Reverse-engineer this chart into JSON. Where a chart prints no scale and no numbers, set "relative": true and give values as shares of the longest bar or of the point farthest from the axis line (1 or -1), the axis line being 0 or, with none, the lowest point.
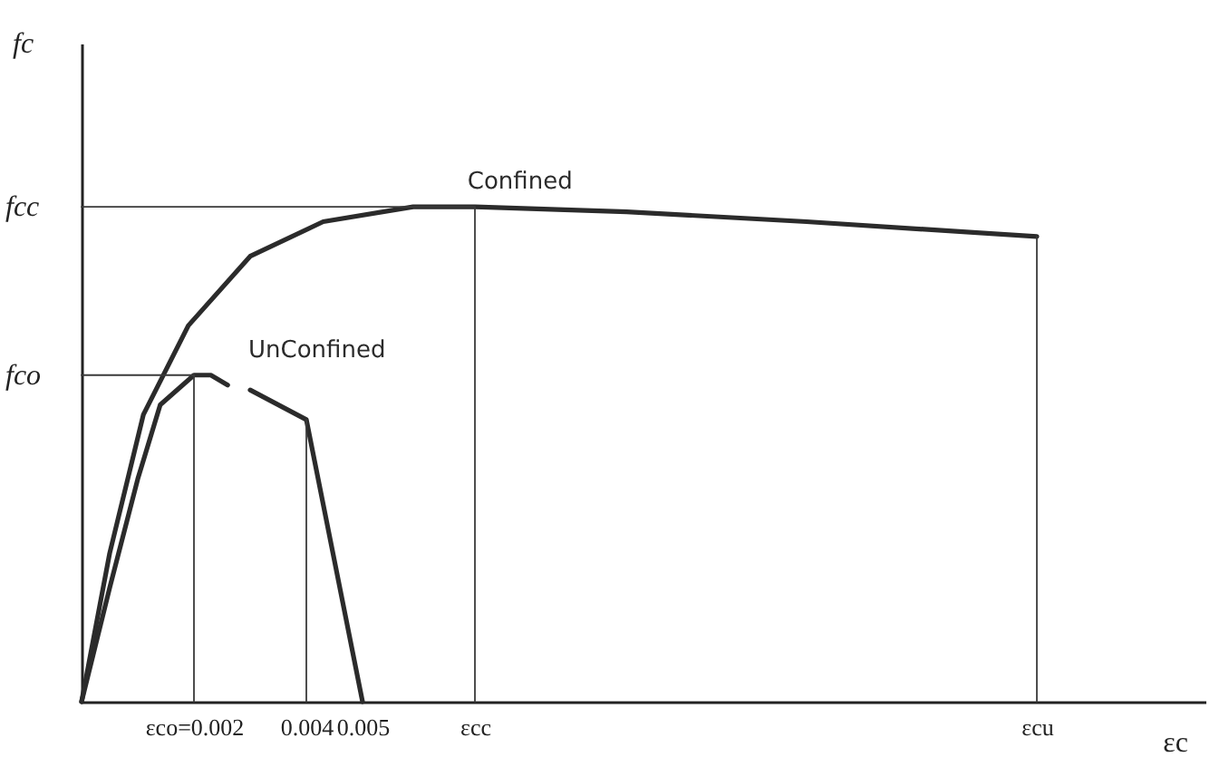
{
  "chart_data": {
    "type": "line",
    "relative": true,
    "xlabel": "εc",
    "xlim": [
      0,
      0.02
    ],
    "xticks": [
      {
        "value": 0.002,
        "label": "εco=0.002"
      },
      0.004,
      0.005,
      {
        "value": 0.007,
        "label": "εcc"
      },
      {
        "value": 0.017,
        "label": "εcu"
      }
    ],
    "series": [
      {
        "name": "Confined",
        "color": "#2b2b2b",
        "x": [
          0,
          0.0005,
          0.0011,
          0.0019,
          0.003,
          0.0043,
          0.0059,
          0.007,
          0.0097,
          0.0129,
          0.017
        ],
        "values": [
          0,
          0.3,
          0.58,
          0.76,
          0.9,
          0.97,
          1.0,
          1.0,
          0.99,
          0.97,
          0.94
        ]
      },
      {
        "name": "UnConfined",
        "color": "#2b2b2b",
        "x": [
          0,
          0.0005,
          0.001,
          0.0014,
          0.002,
          0.0023,
          0.0026,
          0.0028,
          0.003,
          0.004,
          0.005
        ],
        "values": [
          0,
          0.23,
          0.45,
          0.6,
          0.66,
          0.66,
          0.64,
          null,
          0.63,
          0.57,
          0
        ]
      },
      {
        "type": "line",
        "color": "#3a3a3a",
        "x": [
          0,
          0.007
        ],
        "values": [
          1.0,
          1.0
        ]
      },
      {
        "type": "line",
        "color": "#3a3a3a",
        "x": [
          0,
          0.002
        ],
        "values": [
          0.66,
          0.66
        ]
      },
      {
        "type": "line",
        "color": "#3a3a3a",
        "x": [
          0.002,
          0.002
        ],
        "values": [
          0,
          0.66
        ]
      },
      {
        "type": "line",
        "color": "#3a3a3a",
        "x": [
          0.004,
          0.004
        ],
        "values": [
          0,
          0.57
        ]
      },
      {
        "type": "line",
        "color": "#3a3a3a",
        "x": [
          0.007,
          0.007
        ],
        "values": [
          0,
          1.0
        ]
      },
      {
        "type": "line",
        "color": "#3a3a3a",
        "x": [
          0.017,
          0.017
        ],
        "values": [
          0,
          0.94
        ]
      }
    ],
    "annotations": [
      "fc",
      {
        "text": "fcc",
        "x": 0,
        "y": 1.0
      },
      {
        "text": "fco",
        "x": 0,
        "y": 0.66
      }
    ]
  }
}
